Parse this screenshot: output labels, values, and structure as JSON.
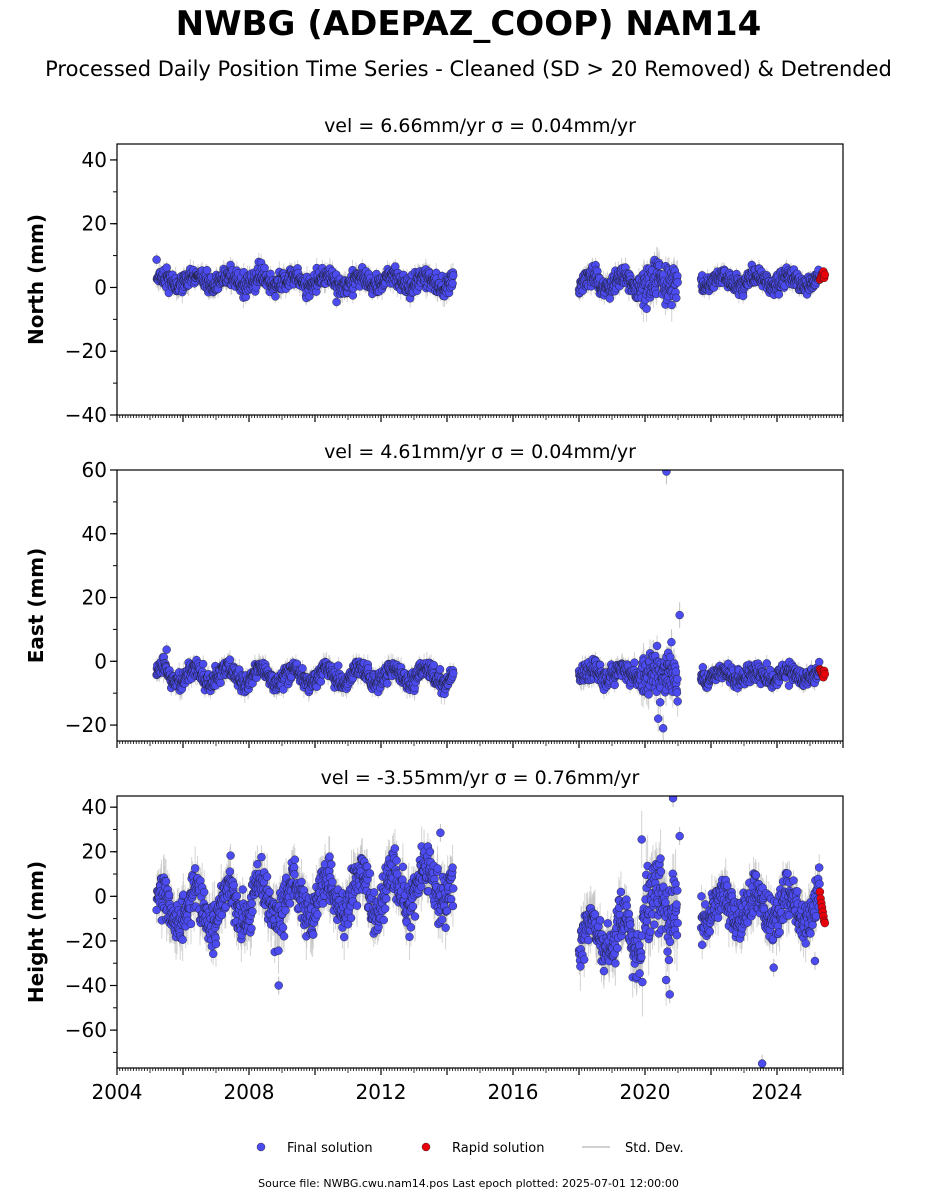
{
  "title": "NWBG (ADEPAZ_COOP) NAM14",
  "subtitle": "Processed Daily Position Time Series - Cleaned (SD > 20 Removed) & Detrended",
  "footer": "Source file: NWBG.cwu.nam14.pos  Last epoch plotted: 2025-07-01 12:00:00",
  "colors": {
    "final": "#4b4bf0",
    "rapid": "#e8000b",
    "stddev": "#c0c0c0",
    "edge": "#1a1a1a"
  },
  "legend": {
    "final": "Final solution",
    "rapid": "Rapid solution",
    "stddev": "Std. Dev."
  },
  "chart_data": [
    {
      "type": "scatter",
      "title": "vel = 6.66mm/yr   σ = 0.04mm/yr",
      "ylabel": "North (mm)",
      "xlim": [
        2004,
        2026
      ],
      "ylim": [
        -40,
        45
      ],
      "yticks": [
        -40,
        -20,
        0,
        20,
        40
      ],
      "yticklabels": [
        "−40",
        "−20",
        "0",
        "20",
        "40"
      ],
      "series": [
        {
          "name": "Final solution",
          "segments": [
            {
              "x0": 2005.2,
              "x1": 2014.2,
              "base": 2.0,
              "amp": 1.5,
              "noise": 1.5,
              "err": 2.5
            },
            {
              "x0": 2018.0,
              "x1": 2019.9,
              "base": 1.5,
              "amp": 2.0,
              "noise": 1.5,
              "err": 2.5
            },
            {
              "x0": 2019.9,
              "x1": 2021.0,
              "base": 1.5,
              "amp": 1.0,
              "noise": 3.0,
              "err": 4.0
            },
            {
              "x0": 2021.7,
              "x1": 2025.3,
              "base": 2.0,
              "amp": 1.5,
              "noise": 1.3,
              "err": 2.0
            }
          ],
          "outliers": []
        },
        {
          "name": "Rapid solution",
          "x0": 2025.3,
          "x1": 2025.45,
          "values": [
            2.5,
            3.0,
            3.5,
            4.0,
            4.5,
            5.0,
            3.0,
            4.0
          ]
        }
      ]
    },
    {
      "type": "scatter",
      "title": "vel = 4.61mm/yr   σ = 0.04mm/yr",
      "ylabel": "East (mm)",
      "xlim": [
        2004,
        2026
      ],
      "ylim": [
        -25,
        60
      ],
      "yticks": [
        -20,
        0,
        20,
        40,
        60
      ],
      "yticklabels": [
        "−20",
        "0",
        "20",
        "40",
        "60"
      ],
      "series": [
        {
          "name": "Final solution",
          "segments": [
            {
              "x0": 2005.2,
              "x1": 2014.2,
              "base": -4.5,
              "amp": 2.5,
              "noise": 1.3,
              "err": 2.5
            },
            {
              "x0": 2018.0,
              "x1": 2019.9,
              "base": -4.0,
              "amp": 1.5,
              "noise": 1.5,
              "err": 2.5
            },
            {
              "x0": 2019.9,
              "x1": 2021.0,
              "base": -4.0,
              "amp": 1.0,
              "noise": 3.5,
              "err": 4.0
            },
            {
              "x0": 2021.7,
              "x1": 2025.3,
              "base": -4.5,
              "amp": 1.5,
              "noise": 1.3,
              "err": 2.0
            }
          ],
          "outliers": [
            [
              2020.65,
              59.5
            ],
            [
              2021.05,
              14.5
            ],
            [
              2020.55,
              -21.0
            ],
            [
              2020.4,
              -18.0
            ],
            [
              2020.8,
              6.0
            ]
          ]
        },
        {
          "name": "Rapid solution",
          "x0": 2025.3,
          "x1": 2025.45,
          "values": [
            -2.5,
            -3.0,
            -3.5,
            -4.0,
            -4.5,
            -5.0,
            -3.0,
            -4.0
          ]
        }
      ]
    },
    {
      "type": "scatter",
      "title": "vel = -3.55mm/yr   σ = 0.76mm/yr",
      "ylabel": "Height (mm)",
      "xlim": [
        2004,
        2026
      ],
      "ylim": [
        -77,
        45
      ],
      "yticks": [
        -60,
        -40,
        -20,
        0,
        20,
        40
      ],
      "yticklabels": [
        "−60",
        "−40",
        "−20",
        "0",
        "20",
        "40"
      ],
      "xticks": [
        2004,
        2008,
        2012,
        2016,
        2020,
        2024
      ],
      "xticklabels": [
        "2004",
        "2008",
        "2012",
        "2016",
        "2020",
        "2024"
      ],
      "series": [
        {
          "name": "Final solution",
          "segments": [
            {
              "x0": 2005.2,
              "x1": 2014.2,
              "base": -7.0,
              "amp": 9.0,
              "noise": 5.0,
              "err": 8.0,
              "trend": 1.4
            },
            {
              "x0": 2018.0,
              "x1": 2019.9,
              "base": -18.0,
              "amp": 9.0,
              "noise": 5.0,
              "err": 8.0,
              "trend": 0
            },
            {
              "x0": 2019.9,
              "x1": 2021.0,
              "base": -3.0,
              "amp": 6.0,
              "noise": 10.0,
              "err": 12.0,
              "trend": 0
            },
            {
              "x0": 2021.7,
              "x1": 2025.3,
              "base": -5.0,
              "amp": 7.0,
              "noise": 5.0,
              "err": 7.0,
              "trend": 0
            }
          ],
          "outliers": [
            [
              2020.85,
              44.0
            ],
            [
              2021.05,
              27.0
            ],
            [
              2008.9,
              -40.0
            ],
            [
              2023.55,
              -75.0
            ],
            [
              2023.9,
              -32.0
            ],
            [
              2020.75,
              -44.0
            ],
            [
              2013.8,
              28.5
            ],
            [
              2025.15,
              -29.0
            ]
          ]
        },
        {
          "name": "Rapid solution",
          "x0": 2025.3,
          "x1": 2025.45,
          "values": [
            2.0,
            -1.0,
            -3.0,
            -5.0,
            -7.0,
            -9.0,
            -11.0,
            -12.0
          ]
        }
      ]
    }
  ]
}
